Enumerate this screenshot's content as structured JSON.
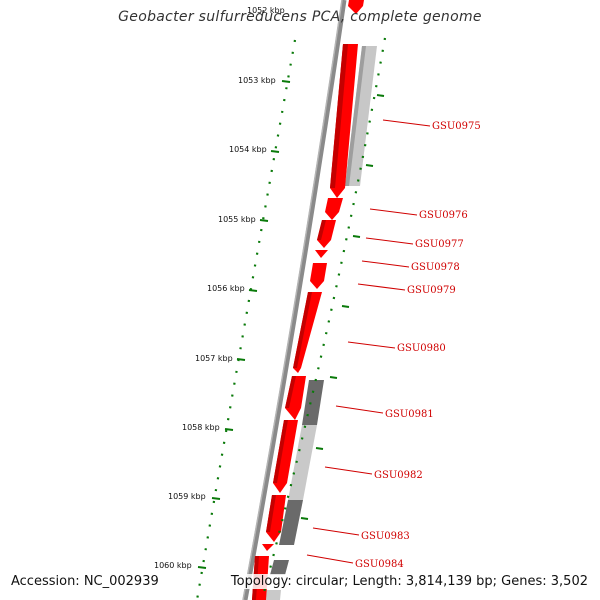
{
  "title": "Geobacter sulfurreducens PCA, complete genome",
  "accession_text": "Accession: NC_002939",
  "topology_text": "Topology: circular; Length: 3,814,139 bp; Genes: 3,502",
  "colors": {
    "gene_fill": "#ff0000",
    "gene_shade": "#b80000",
    "label_red": "#d00000",
    "tick_green": "#007700",
    "backbone_gray": "#777777",
    "feature_dark": "#666666",
    "feature_light": "#c4c4c4"
  },
  "kbp_labels": [
    "1052 kbp",
    "1053 kbp",
    "1054 kbp",
    "1055 kbp",
    "1056 kbp",
    "1057 kbp",
    "1058 kbp",
    "1059 kbp",
    "1060 kbp"
  ],
  "gene_labels": [
    "GSU0975",
    "GSU0976",
    "GSU0977",
    "GSU0978",
    "GSU0979",
    "GSU0980",
    "GSU0981",
    "GSU0982",
    "GSU0983",
    "GSU0984"
  ]
}
